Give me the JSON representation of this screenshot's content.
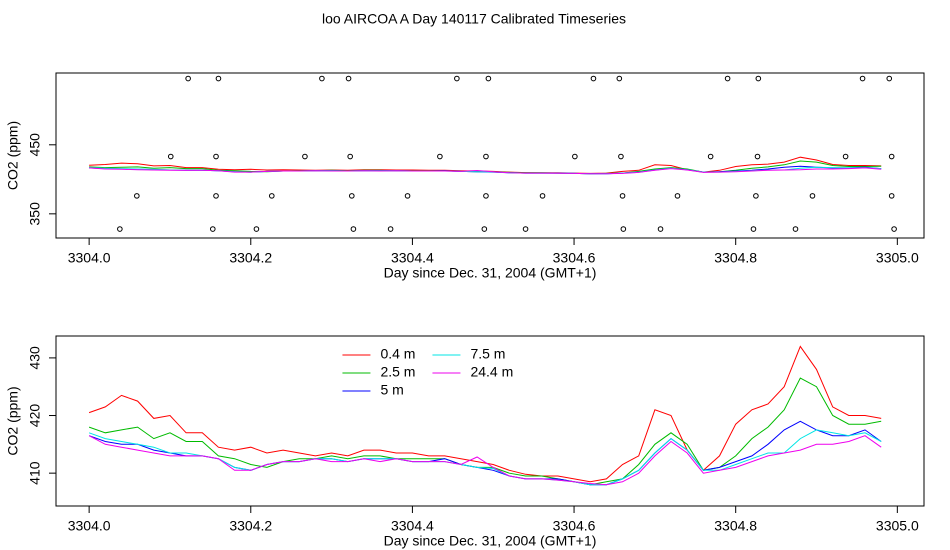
{
  "title": "loo AIRCOA A  Day 140117  Calibrated Timeseries",
  "chart_data": [
    {
      "type": "line",
      "xlabel": "Day since Dec. 31, 2004 (GMT+1)",
      "ylabel": "CO2 (ppm)",
      "xlim": [
        3303.959,
        3305.033
      ],
      "ylim": [
        315,
        554
      ],
      "xticks": [
        {
          "value": 3304.0,
          "label": "3304.0"
        },
        {
          "value": 3304.2,
          "label": "3304.2"
        },
        {
          "value": 3304.4,
          "label": "3304.4"
        },
        {
          "value": 3304.6,
          "label": "3304.6"
        },
        {
          "value": 3304.8,
          "label": "3304.8"
        },
        {
          "value": 3305.0,
          "label": "3305.0"
        }
      ],
      "yticks": [
        350,
        450
      ],
      "points": {
        "color": "#000000",
        "x": [
          3304.1225,
          3304.16,
          3304.288,
          3304.321,
          3304.455,
          3304.494,
          3304.624,
          3304.656,
          3304.79,
          3304.828,
          3304.957,
          3304.99,
          3304.101,
          3304.157,
          3304.267,
          3304.323,
          3304.434,
          3304.491,
          3304.601,
          3304.658,
          3304.769,
          3304.827,
          3304.936,
          3304.993,
          3304.059,
          3304.157,
          3304.226,
          3304.325,
          3304.394,
          3304.491,
          3304.561,
          3304.66,
          3304.728,
          3304.825,
          3304.895,
          3304.993,
          3304.038,
          3304.153,
          3304.207,
          3304.327,
          3304.373,
          3304.489,
          3304.54,
          3304.661,
          3304.707,
          3304.822,
          3304.874,
          3304.996
        ],
        "y": [
          546,
          546,
          546,
          546,
          546,
          546,
          546,
          546,
          546,
          546,
          546,
          546,
          433,
          433,
          433,
          433,
          433,
          433,
          433,
          433,
          433,
          433,
          433,
          433,
          376,
          376,
          376,
          376,
          376,
          376,
          376,
          376,
          376,
          376,
          376,
          376,
          328,
          328,
          328,
          328,
          328,
          328,
          328,
          328,
          328,
          328,
          328,
          328
        ]
      },
      "x": [
        3304.0,
        3304.02,
        3304.04,
        3304.06,
        3304.08,
        3304.1,
        3304.12,
        3304.14,
        3304.16,
        3304.18,
        3304.2,
        3304.22,
        3304.24,
        3304.26,
        3304.28,
        3304.3,
        3304.32,
        3304.34,
        3304.36,
        3304.38,
        3304.4,
        3304.42,
        3304.44,
        3304.46,
        3304.48,
        3304.5,
        3304.52,
        3304.54,
        3304.56,
        3304.58,
        3304.6,
        3304.62,
        3304.64,
        3304.66,
        3304.68,
        3304.7,
        3304.72,
        3304.74,
        3304.76,
        3304.78,
        3304.8,
        3304.82,
        3304.84,
        3304.86,
        3304.88,
        3304.9,
        3304.92,
        3304.94,
        3304.96,
        3304.98
      ],
      "series": [
        {
          "color": "#ff0000",
          "values": [
            420.5,
            421.5,
            423.5,
            422.5,
            419.5,
            420,
            417,
            417,
            414.5,
            414,
            414.5,
            413.5,
            414,
            413.5,
            413,
            413.5,
            413,
            414,
            414,
            413.5,
            413.5,
            413,
            413,
            412.5,
            412,
            411.5,
            410.5,
            409.8,
            409.5,
            409.5,
            409,
            408.5,
            409,
            411.5,
            413,
            421,
            420,
            414,
            410.5,
            413,
            418.5,
            421,
            422,
            425,
            432,
            428,
            421.5,
            420,
            420,
            419.5
          ]
        },
        {
          "color": "#00bb00",
          "values": [
            418,
            417,
            417.5,
            418,
            416,
            417,
            415.5,
            415.5,
            413,
            412.5,
            411.5,
            411,
            412,
            412.5,
            412.5,
            413,
            412.5,
            413,
            413,
            412.5,
            412.5,
            412.5,
            412.5,
            411.5,
            411,
            411,
            410,
            409.5,
            409.5,
            409,
            408.5,
            408,
            408.5,
            409,
            411.5,
            415,
            417,
            415,
            410.5,
            411,
            413,
            416,
            418,
            421,
            426.5,
            425,
            420,
            418.5,
            418.5,
            419
          ]
        },
        {
          "color": "#0000ff",
          "values": [
            416.5,
            415.5,
            415,
            415,
            414,
            413.5,
            413,
            413,
            412.5,
            411,
            410.5,
            411.5,
            412,
            412,
            412.5,
            412.5,
            412,
            412.5,
            412.5,
            412.5,
            412,
            412,
            412.5,
            411.5,
            411,
            410.5,
            409.5,
            409,
            409,
            409,
            408.5,
            408,
            408,
            409,
            410.5,
            413.5,
            416,
            414,
            410.5,
            411,
            412,
            413,
            415,
            417.5,
            419,
            417.5,
            416.5,
            416.5,
            417.5,
            415.5
          ]
        },
        {
          "color": "#00e5e5",
          "values": [
            417,
            416,
            415.5,
            415,
            414.5,
            413.5,
            413.5,
            413,
            412.5,
            411,
            410.5,
            411.5,
            412,
            412,
            412.5,
            412.5,
            412,
            412.5,
            412.5,
            412.5,
            412,
            412,
            412,
            411.5,
            411,
            410.8,
            409.5,
            409,
            409,
            408.8,
            408.5,
            408,
            408,
            409,
            410.5,
            413.5,
            416,
            414,
            410.5,
            410.5,
            411.5,
            412.5,
            413.5,
            413.5,
            416,
            417.5,
            417,
            416.5,
            417,
            415.5
          ]
        },
        {
          "color": "#ee00ee",
          "values": [
            416.5,
            415,
            414.5,
            414,
            413.5,
            413,
            413,
            413,
            412.5,
            410.5,
            410.5,
            411.5,
            412,
            412,
            412.5,
            412,
            412,
            412.5,
            412,
            412.5,
            412,
            412,
            412,
            411.5,
            412.8,
            411,
            409.5,
            409,
            409,
            408.8,
            408.5,
            408.2,
            408,
            408.5,
            410,
            413,
            415.5,
            413.5,
            410,
            410.5,
            411,
            412,
            413,
            413.5,
            414,
            415,
            415,
            415.5,
            416.5,
            414.5
          ]
        }
      ]
    },
    {
      "type": "line",
      "xlabel": "Day since Dec. 31, 2004 (GMT+1)",
      "ylabel": "CO2 (ppm)",
      "xlim": [
        3303.959,
        3305.033
      ],
      "ylim": [
        404.3,
        433.8
      ],
      "xticks": [
        {
          "value": 3304.0,
          "label": "3304.0"
        },
        {
          "value": 3304.2,
          "label": "3304.2"
        },
        {
          "value": 3304.4,
          "label": "3304.4"
        },
        {
          "value": 3304.6,
          "label": "3304.6"
        },
        {
          "value": 3304.8,
          "label": "3304.8"
        },
        {
          "value": 3305.0,
          "label": "3305.0"
        }
      ],
      "yticks": [
        410,
        420,
        430
      ],
      "legend": "top",
      "x": [
        3304.0,
        3304.02,
        3304.04,
        3304.06,
        3304.08,
        3304.1,
        3304.12,
        3304.14,
        3304.16,
        3304.18,
        3304.2,
        3304.22,
        3304.24,
        3304.26,
        3304.28,
        3304.3,
        3304.32,
        3304.34,
        3304.36,
        3304.38,
        3304.4,
        3304.42,
        3304.44,
        3304.46,
        3304.48,
        3304.5,
        3304.52,
        3304.54,
        3304.56,
        3304.58,
        3304.6,
        3304.62,
        3304.64,
        3304.66,
        3304.68,
        3304.7,
        3304.72,
        3304.74,
        3304.76,
        3304.78,
        3304.8,
        3304.82,
        3304.84,
        3304.86,
        3304.88,
        3304.9,
        3304.92,
        3304.94,
        3304.96,
        3304.98
      ],
      "series": [
        {
          "name": "0.4 m",
          "color": "#ff0000",
          "values": [
            420.5,
            421.5,
            423.5,
            422.5,
            419.5,
            420,
            417,
            417,
            414.5,
            414,
            414.5,
            413.5,
            414,
            413.5,
            413,
            413.5,
            413,
            414,
            414,
            413.5,
            413.5,
            413,
            413,
            412.5,
            412,
            411.5,
            410.5,
            409.8,
            409.5,
            409.5,
            409,
            408.5,
            409,
            411.5,
            413,
            421,
            420,
            414,
            410.5,
            413,
            418.5,
            421,
            422,
            425,
            432,
            428,
            421.5,
            420,
            420,
            419.5
          ]
        },
        {
          "name": "2.5 m",
          "color": "#00bb00",
          "values": [
            418,
            417,
            417.5,
            418,
            416,
            417,
            415.5,
            415.5,
            413,
            412.5,
            411.5,
            411,
            412,
            412.5,
            412.5,
            413,
            412.5,
            413,
            413,
            412.5,
            412.5,
            412.5,
            412.5,
            411.5,
            411,
            411,
            410,
            409.5,
            409.5,
            409,
            408.5,
            408,
            408.5,
            409,
            411.5,
            415,
            417,
            415,
            410.5,
            411,
            413,
            416,
            418,
            421,
            426.5,
            425,
            420,
            418.5,
            418.5,
            419
          ]
        },
        {
          "name": "5 m",
          "color": "#0000ff",
          "values": [
            416.5,
            415.5,
            415,
            415,
            414,
            413.5,
            413,
            413,
            412.5,
            411,
            410.5,
            411.5,
            412,
            412,
            412.5,
            412.5,
            412,
            412.5,
            412.5,
            412.5,
            412,
            412,
            412.5,
            411.5,
            411,
            410.5,
            409.5,
            409,
            409,
            409,
            408.5,
            408,
            408,
            409,
            410.5,
            413.5,
            416,
            414,
            410.5,
            411,
            412,
            413,
            415,
            417.5,
            419,
            417.5,
            416.5,
            416.5,
            417.5,
            415.5
          ]
        },
        {
          "name": "7.5 m",
          "color": "#00e5e5",
          "values": [
            417,
            416,
            415.5,
            415,
            414.5,
            413.5,
            413.5,
            413,
            412.5,
            411,
            410.5,
            411.5,
            412,
            412,
            412.5,
            412.5,
            412,
            412.5,
            412.5,
            412.5,
            412,
            412,
            412,
            411.5,
            411,
            410.8,
            409.5,
            409,
            409,
            408.8,
            408.5,
            408,
            408,
            409,
            410.5,
            413.5,
            416,
            414,
            410.5,
            410.5,
            411.5,
            412.5,
            413.5,
            413.5,
            416,
            417.5,
            417,
            416.5,
            417,
            415.5
          ]
        },
        {
          "name": "24.4 m",
          "color": "#ee00ee",
          "values": [
            416.5,
            415,
            414.5,
            414,
            413.5,
            413,
            413,
            413,
            412.5,
            410.5,
            410.5,
            411.5,
            412,
            412,
            412.5,
            412,
            412,
            412.5,
            412,
            412.5,
            412,
            412,
            412,
            411.5,
            412.8,
            411,
            409.5,
            409,
            409,
            408.8,
            408.5,
            408.2,
            408,
            408.5,
            410,
            413,
            415.5,
            413.5,
            410,
            410.5,
            411,
            412,
            413,
            413.5,
            414,
            415,
            415,
            415.5,
            416.5,
            414.5
          ]
        }
      ]
    }
  ]
}
